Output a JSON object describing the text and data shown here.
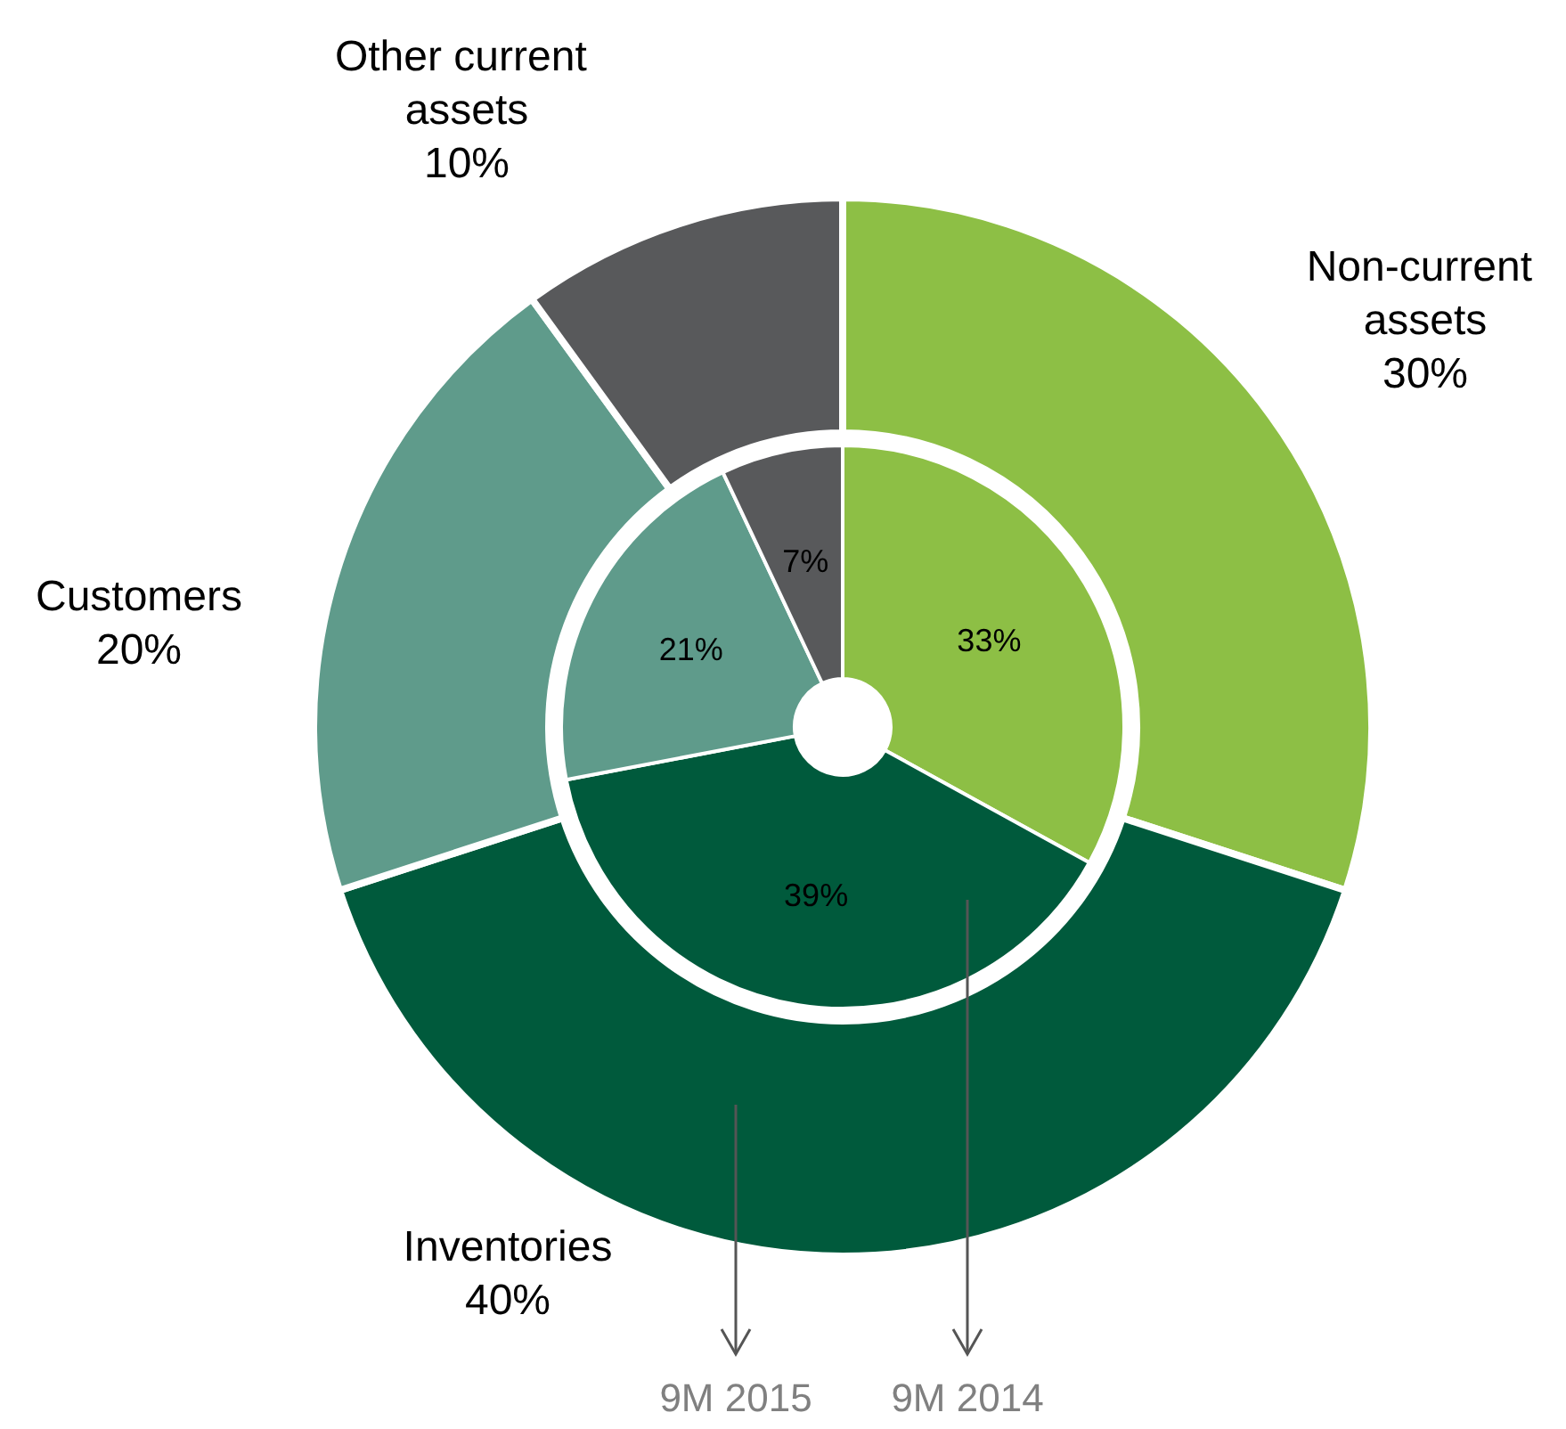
{
  "chart_data": {
    "type": "donut",
    "categories": [
      "Non-current assets",
      "Inventories",
      "Customers",
      "Other current assets"
    ],
    "colors": [
      "#8dbf45",
      "#005a3c",
      "#5f9b8b",
      "#58595b"
    ],
    "series": [
      {
        "name": "9M 2015",
        "values": [
          30,
          40,
          20,
          10
        ],
        "value_labels": [
          "30%",
          "40%",
          "20%",
          "10%"
        ]
      },
      {
        "name": "9M 2014",
        "values": [
          33,
          39,
          21,
          7
        ],
        "value_labels": [
          "33%",
          "39%",
          "21%",
          "7%"
        ]
      }
    ],
    "legend": "bottom"
  }
}
